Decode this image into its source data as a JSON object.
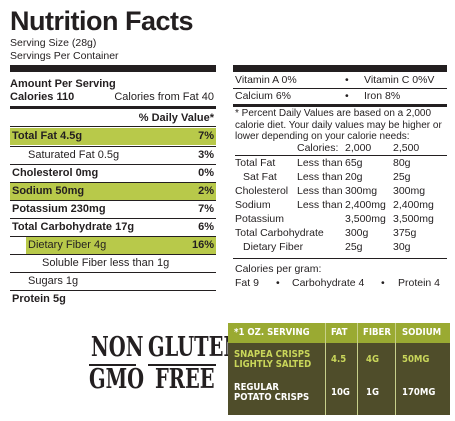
{
  "label": {
    "title": "Nutrition Facts",
    "serving_size": "Serving Size (28g)",
    "servings_per_container": "Servings Per Container",
    "amount_per_serving": "Amount Per Serving",
    "calories": "Calories 110",
    "calories_from_fat": "Calories from Fat 40",
    "daily_value_header": "% Daily Value*",
    "rows": [
      {
        "label": "Total Fat 4.5g",
        "value": "7%",
        "bold": true,
        "highlight": true
      },
      {
        "label": "Saturated Fat 0.5g",
        "value": "3%",
        "bold": false,
        "highlight": false
      },
      {
        "label": "Cholesterol 0mg",
        "value": "0%",
        "bold": true,
        "highlight": false
      },
      {
        "label": "Sodium 50mg",
        "value": "2%",
        "bold": true,
        "highlight": true
      },
      {
        "label": "Potassium 230mg",
        "value": "7%",
        "bold": true,
        "highlight": false
      },
      {
        "label": "Total Carbohydrate 17g",
        "value": "6%",
        "bold": true,
        "highlight": false
      },
      {
        "label": "Dietary Fiber 4g",
        "value": "16%",
        "bold": false,
        "highlight": true
      },
      {
        "label": "Soluble Fiber less than 1g",
        "value": "",
        "bold": false,
        "highlight": false
      },
      {
        "label": "Sugars 1g",
        "value": "",
        "bold": false,
        "highlight": false
      },
      {
        "label": "Protein 5g",
        "value": "",
        "bold": true,
        "highlight": false
      }
    ],
    "vitamins": {
      "vitamin_a": "Vitamin A 0%",
      "vitamin_c": "Vitamin C 0%V",
      "calcium": "Calcium 6%",
      "iron": "Iron 8%",
      "bullet": "•"
    },
    "footnote": "* Percent Daily Values are based on a 2,000 calorie diet. Your daily values may be higher or lower depending on your calorie needs:",
    "dv_table": {
      "header": {
        "label": "Calories:",
        "c1": "2,000",
        "c2": "2,500"
      },
      "rows": [
        {
          "name": "Total Fat",
          "limit": "Less than",
          "c1": "65g",
          "c2": "80g"
        },
        {
          "name": "Sat Fat",
          "limit": "Less than",
          "c1": "20g",
          "c2": "25g"
        },
        {
          "name": "Cholesterol",
          "limit": "Less than",
          "c1": "300mg",
          "c2": "300mg"
        },
        {
          "name": "Sodium",
          "limit": "Less than",
          "c1": "2,400mg",
          "c2": "2,400mg"
        },
        {
          "name": "Potassium",
          "limit": "",
          "c1": "3,500mg",
          "c2": "3,500mg"
        },
        {
          "name": "Total Carbohydrate",
          "limit": "",
          "c1": "300g",
          "c2": "375g"
        },
        {
          "name": "Dietary Fiber",
          "limit": "",
          "c1": "25g",
          "c2": "30g"
        }
      ]
    },
    "calories_per_gram": "Calories per gram:",
    "per_gram": {
      "fat": "Fat 9",
      "carb": "Carbohydrate 4",
      "protein": "Protein 4"
    }
  },
  "badges": {
    "non_gmo_line1": "NON",
    "non_gmo_line2": "GMO",
    "gluten_free_line1": "GLUTEN",
    "gluten_free_line2": "FREE"
  },
  "comparison": {
    "headers": [
      "*1 OZ. SERVING",
      "FAT",
      "FIBER",
      "SODIUM"
    ],
    "rows": [
      {
        "name_line1": "SNAPEA CRISPS",
        "name_line2": "LIGHTLY SALTED",
        "fat": "4.5",
        "fiber": "4G",
        "sodium": "50MG"
      },
      {
        "name_line1": "REGULAR",
        "name_line2": "POTATO CRISPS",
        "fat": "10G",
        "fiber": "1G",
        "sodium": "170MG"
      }
    ],
    "colors": {
      "header_bg": "#9aaa32",
      "body_bg": "#4f4d2a",
      "accent_text": "#c9d65a"
    }
  }
}
